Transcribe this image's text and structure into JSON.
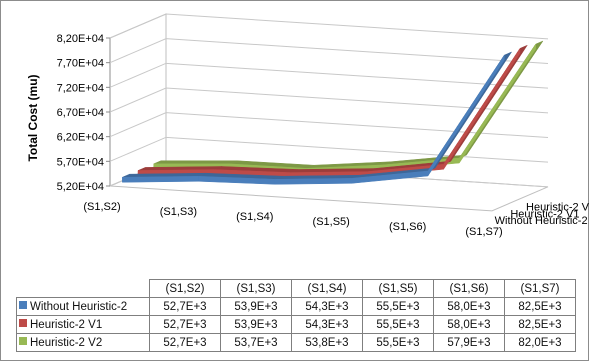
{
  "chart_data": {
    "type": "line",
    "subtype": "3d-ribbon",
    "title": "",
    "ylabel": "Total Cost (mu)",
    "xlabel": "",
    "categories": [
      "(S1,S2)",
      "(S1,S3)",
      "(S1,S4)",
      "(S1,S5)",
      "(S1,S6)",
      "(S1,S7)"
    ],
    "ylim": [
      52000,
      82000
    ],
    "yticks": [
      "5,20E+04",
      "5,70E+04",
      "6,20E+04",
      "6,70E+04",
      "7,20E+04",
      "7,70E+04",
      "8,20E+04"
    ],
    "grid": true,
    "legend": "data-table-below",
    "series": [
      {
        "name": "Without Heuristic-2",
        "color": "#4a7ebb",
        "values": [
          52700,
          53900,
          54300,
          55500,
          58000,
          82500
        ],
        "labels": [
          "52,7E+3",
          "53,9E+3",
          "54,3E+3",
          "55,5E+3",
          "58,0E+3",
          "82,5E+3"
        ]
      },
      {
        "name": "Heuristic-2 V1",
        "color": "#be4b48",
        "values": [
          52700,
          53900,
          54300,
          55500,
          58000,
          82500
        ],
        "labels": [
          "52,7E+3",
          "53,9E+3",
          "54,3E+3",
          "55,5E+3",
          "58,0E+3",
          "82,5E+3"
        ]
      },
      {
        "name": "Heuristic-2 V2",
        "color": "#98b954",
        "values": [
          52700,
          53700,
          53800,
          55500,
          57900,
          82000
        ],
        "labels": [
          "52,7E+3",
          "53,7E+3",
          "53,8E+3",
          "55,5E+3",
          "57,9E+3",
          "82,0E+3"
        ]
      }
    ]
  }
}
